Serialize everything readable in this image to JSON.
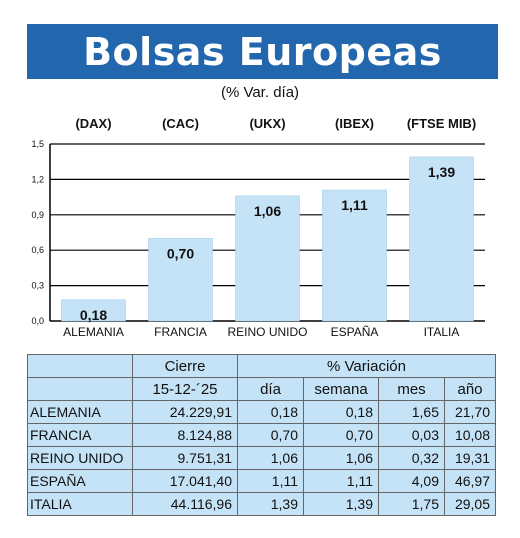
{
  "title": "Bolsas Europeas",
  "subtitle": "(% Var. día)",
  "chart_data": {
    "type": "bar",
    "index_labels": [
      "(DAX)",
      "(CAC)",
      "(UKX)",
      "(IBEX)",
      "(FTSE MIB)"
    ],
    "categories": [
      "ALEMANIA",
      "FRANCIA",
      "REINO UNIDO",
      "ESPAÑA",
      "ITALIA"
    ],
    "values": [
      0.18,
      0.7,
      1.06,
      1.11,
      1.39
    ],
    "value_labels": [
      "0,18",
      "0,70",
      "1,06",
      "1,11",
      "1,39"
    ],
    "ylim": [
      0,
      1.5
    ],
    "yticks": [
      0.0,
      0.3,
      0.6,
      0.9,
      1.2,
      1.5
    ],
    "ytick_labels": [
      "0,0",
      "0,3",
      "0,6",
      "0,9",
      "1,2",
      "1,5"
    ],
    "grid": true,
    "bar_color": "#c5e3f7"
  },
  "table": {
    "header1": {
      "cierre": "Cierre",
      "variacion": "% Variación"
    },
    "header2": {
      "date": "15-12-´25",
      "dia": "día",
      "semana": "semana",
      "mes": "mes",
      "anio": "año"
    },
    "rows": [
      {
        "name": "ALEMANIA",
        "cierre": "24.229,91",
        "dia": "0,18",
        "semana": "0,18",
        "mes": "1,65",
        "anio": "21,70"
      },
      {
        "name": "FRANCIA",
        "cierre": "8.124,88",
        "dia": "0,70",
        "semana": "0,70",
        "mes": "0,03",
        "anio": "10,08"
      },
      {
        "name": "REINO UNIDO",
        "cierre": "9.751,31",
        "dia": "1,06",
        "semana": "1,06",
        "mes": "0,32",
        "anio": "19,31"
      },
      {
        "name": "ESPAÑA",
        "cierre": "17.041,40",
        "dia": "1,11",
        "semana": "1,11",
        "mes": "4,09",
        "anio": "46,97"
      },
      {
        "name": "ITALIA",
        "cierre": "44.116,96",
        "dia": "1,39",
        "semana": "1,39",
        "mes": "1,75",
        "anio": "29,05"
      }
    ]
  },
  "colors": {
    "title_bg": "#2266ad",
    "table_bg": "#c5e3f7",
    "bar_fill": "#c5e3f7"
  }
}
